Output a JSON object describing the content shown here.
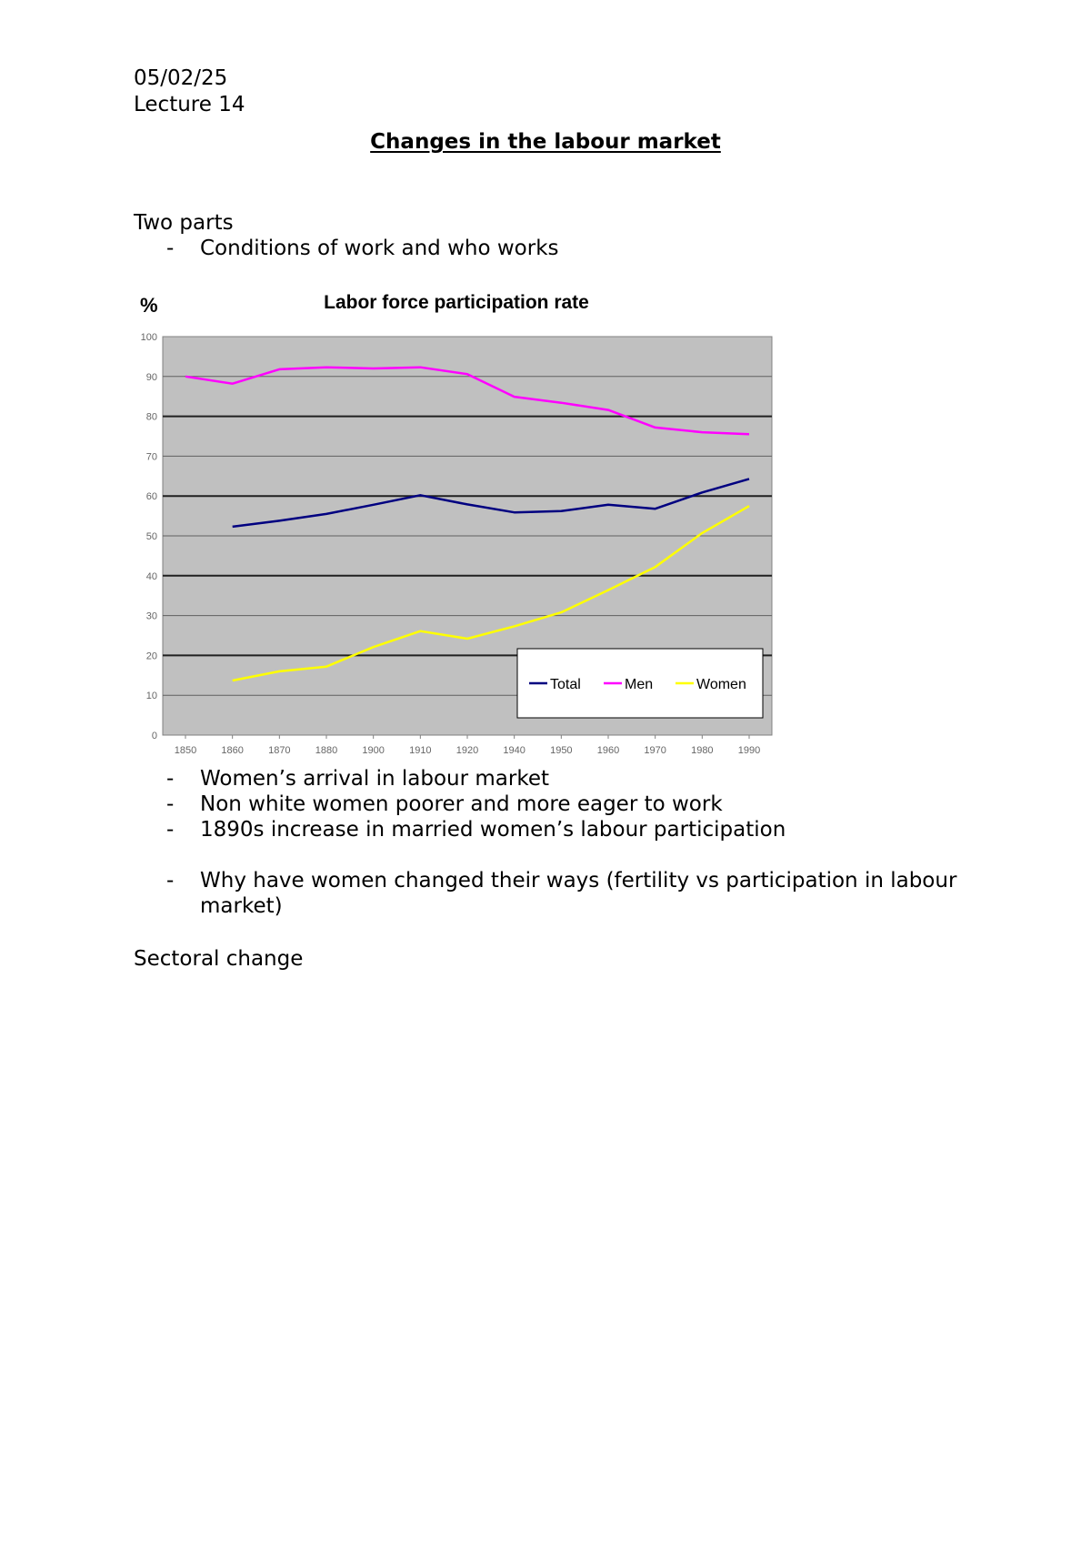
{
  "header": {
    "date": "05/02/25",
    "lecture": "Lecture 14"
  },
  "title": "Changes in the labour market",
  "intro": {
    "heading": "Two parts",
    "bullets": [
      "Conditions of work and who works"
    ]
  },
  "bullet_marker": "-",
  "chart_data": {
    "type": "line",
    "title": "Labor force participation rate",
    "ylabel": "%",
    "xlabel": "",
    "ylim": [
      0,
      100
    ],
    "yticks": [
      0,
      10,
      20,
      30,
      40,
      50,
      60,
      70,
      80,
      90,
      100
    ],
    "categories": [
      "1850",
      "1860",
      "1870",
      "1880",
      "1900",
      "1910",
      "1920",
      "1940",
      "1950",
      "1960",
      "1970",
      "1980",
      "1990"
    ],
    "grid": true,
    "legend_position": "bottom-right",
    "plot_background": "#c0c0c0",
    "series": [
      {
        "name": "Total",
        "color": "#000080",
        "values": [
          null,
          52.3,
          53.8,
          55.5,
          57.8,
          60.2,
          57.9,
          55.9,
          56.2,
          57.8,
          56.8,
          60.9,
          64.3
        ]
      },
      {
        "name": "Men",
        "color": "#ff00ff",
        "values": [
          90.0,
          88.2,
          91.8,
          92.3,
          92.0,
          92.3,
          90.6,
          84.9,
          83.4,
          81.6,
          77.2,
          76.0,
          75.5
        ]
      },
      {
        "name": "Women",
        "color": "#ffff00",
        "values": [
          null,
          13.7,
          16.0,
          17.2,
          22.1,
          26.1,
          24.2,
          27.3,
          30.8,
          36.4,
          42.2,
          50.7,
          57.5
        ]
      }
    ]
  },
  "after_chart": {
    "bullets": [
      "Women’s arrival in labour market",
      "Non white women poorer and more eager to work",
      "1890s increase in married women’s labour participation"
    ],
    "question": "Why have women changed their ways (fertility vs participation in labour market)"
  },
  "section_heading": "Sectoral change"
}
